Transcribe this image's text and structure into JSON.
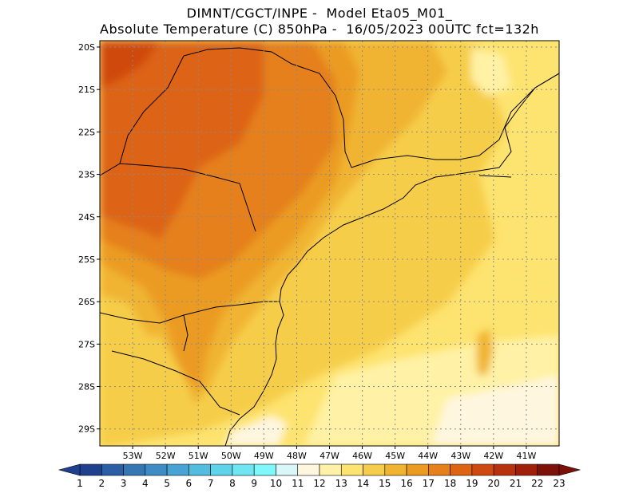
{
  "header": {
    "line1": "DIMNT/CGCT/INPE -  Model Eta05_M01_",
    "line2": "Absolute Temperature (C) 850hPa -  16/05/2023 00UTC fct=132h"
  },
  "map": {
    "lon_min": -54.0,
    "lon_max": -40.0,
    "lat_min": -29.4,
    "lat_max": -19.85,
    "lat_labels": [
      "20S",
      "21S",
      "22S",
      "23S",
      "24S",
      "25S",
      "26S",
      "27S",
      "28S",
      "29S"
    ],
    "lat_values": [
      -20,
      -21,
      -22,
      -23,
      -24,
      -25,
      -26,
      -27,
      -28,
      -29
    ],
    "lon_labels": [
      "53W",
      "52W",
      "51W",
      "50W",
      "49W",
      "48W",
      "47W",
      "46W",
      "45W",
      "44W",
      "43W",
      "42W",
      "41W"
    ],
    "lon_values": [
      -53,
      -52,
      -51,
      -50,
      -49,
      -48,
      -47,
      -46,
      -45,
      -44,
      -43,
      -42,
      -41
    ],
    "grid": true
  },
  "colorbar": {
    "labels": [
      "1",
      "2",
      "3",
      "4",
      "5",
      "6",
      "7",
      "8",
      "9",
      "10",
      "11",
      "12",
      "13",
      "14",
      "15",
      "16",
      "17",
      "18",
      "19",
      "20",
      "21",
      "22",
      "23"
    ],
    "colors": [
      "#1f3f8f",
      "#2c5ea5",
      "#3576b5",
      "#3d8cc5",
      "#47a3d3",
      "#52bddf",
      "#5fd3ea",
      "#6fe6f2",
      "#7ff8fb",
      "#d9f6f8",
      "#fff6e0",
      "#fff2a6",
      "#fde36f",
      "#f6cd4a",
      "#f0b431",
      "#eb9b22",
      "#e5801a",
      "#dd6413",
      "#cf4a10",
      "#b8320d",
      "#9f1f0b",
      "#7d1008"
    ]
  },
  "temperature_zones": [
    {
      "label": "19",
      "color": "#cf4a10"
    },
    {
      "label": "18",
      "color": "#dd6413"
    },
    {
      "label": "17",
      "color": "#e5801a"
    },
    {
      "label": "16",
      "color": "#eb9b22"
    },
    {
      "label": "15",
      "color": "#f0b431"
    },
    {
      "label": "14",
      "color": "#f6cd4a"
    },
    {
      "label": "13",
      "color": "#fde36f"
    },
    {
      "label": "12",
      "color": "#fff2a6"
    },
    {
      "label": "11",
      "color": "#fff6e0"
    }
  ]
}
